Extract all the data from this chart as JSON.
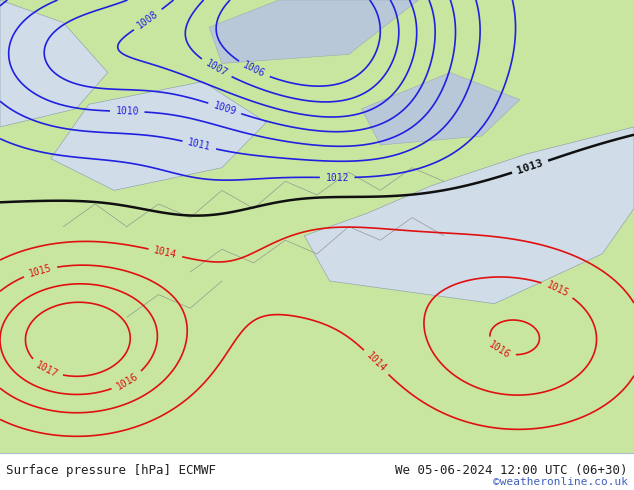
{
  "title_left": "Surface pressure [hPa] ECMWF",
  "title_right": "We 05-06-2024 12:00 UTC (06+30)",
  "watermark": "©weatheronline.co.uk",
  "bg_land_light": "#c8e6a0",
  "bg_sea": "#d0dce8",
  "bg_gray": "#b8c8d8",
  "contour_color_blue": "#2020e0",
  "contour_color_black": "#101010",
  "contour_color_red": "#e01010",
  "bottom_bar_color": "#d8e8f8",
  "bottom_text_color": "#202020",
  "watermark_color": "#4060c0",
  "figsize": [
    6.34,
    4.9
  ],
  "dpi": 100,
  "blue_levels": [
    1006,
    1007,
    1008,
    1009,
    1010,
    1011,
    1012
  ],
  "black_levels": [
    1013
  ],
  "red_levels": [
    1014,
    1015,
    1016,
    1017
  ]
}
